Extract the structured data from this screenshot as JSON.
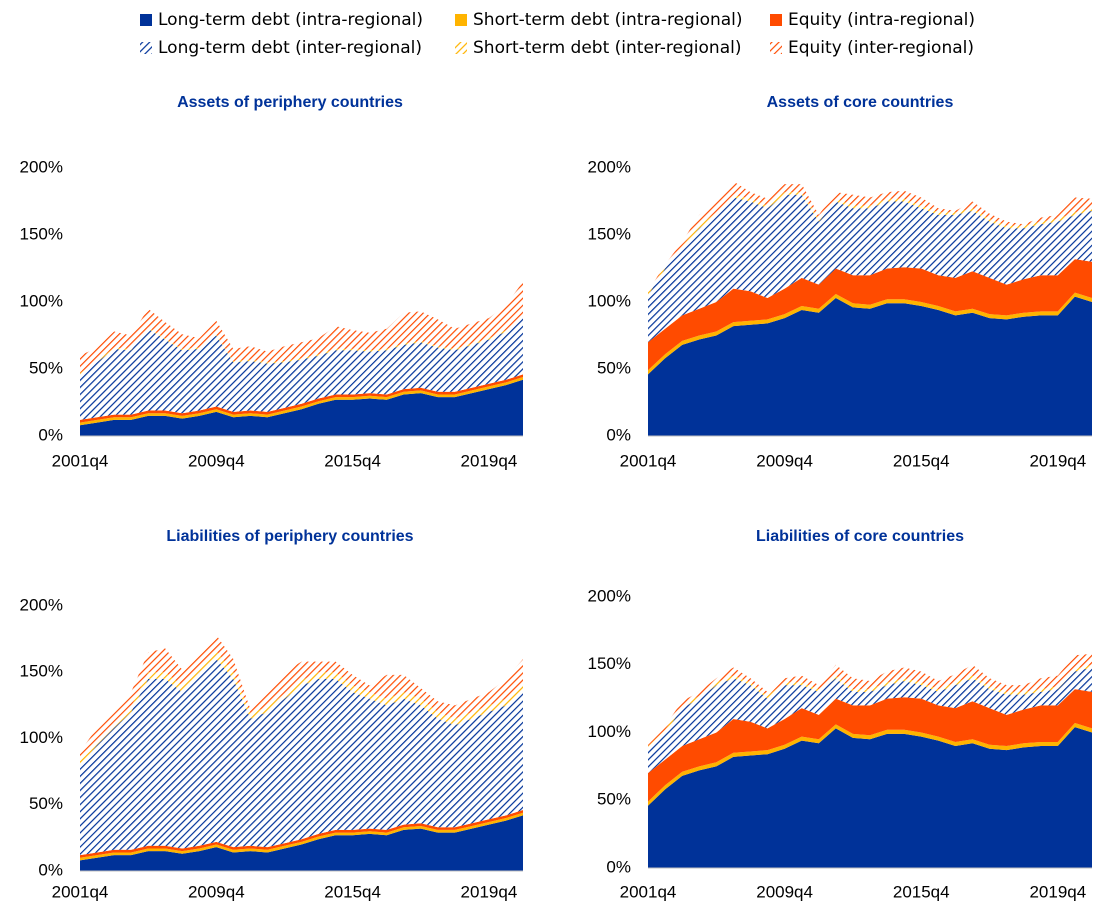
{
  "legend": [
    {
      "name": "Long-term debt (intra-regional)",
      "color": "#003299",
      "hatched": false
    },
    {
      "name": "Short-term debt (intra-regional)",
      "color": "#ffb400",
      "hatched": false
    },
    {
      "name": "Equity (intra-regional)",
      "color": "#ff4b00",
      "hatched": false
    },
    {
      "name": "Long-term debt (inter-regional)",
      "color": "#003299",
      "hatched": true
    },
    {
      "name": "Short-term debt (inter-regional)",
      "color": "#ffb400",
      "hatched": true
    },
    {
      "name": "Equity (inter-regional)",
      "color": "#ff4b00",
      "hatched": true
    }
  ],
  "chart_data": [
    {
      "type": "stacked-area",
      "title": "Assets of periphery countries",
      "categories": [
        "2001q4",
        null,
        null,
        null,
        null,
        null,
        null,
        null,
        "2009q4",
        null,
        null,
        null,
        null,
        null,
        null,
        null,
        "2015q4",
        null,
        null,
        null,
        null,
        null,
        null,
        null,
        "2019q4",
        null,
        null
      ],
      "ylim": [
        0,
        200
      ],
      "yticks": [
        {
          "value": 0,
          "label": "0%"
        },
        {
          "value": 50,
          "label": "50%"
        },
        {
          "value": 100,
          "label": "100%"
        },
        {
          "value": 150,
          "label": "150%"
        },
        {
          "value": 200,
          "label": "200%"
        }
      ],
      "series": [
        {
          "values": [
            8,
            10,
            12,
            12,
            15,
            15,
            13,
            15,
            18,
            14,
            15,
            14,
            17,
            20,
            24,
            27,
            27,
            28,
            27,
            31,
            32,
            29,
            29,
            32,
            35,
            38,
            42
          ]
        },
        {
          "values": [
            2,
            2,
            2,
            2,
            2,
            2,
            2,
            2,
            2,
            2,
            2,
            2,
            2,
            2,
            2,
            2,
            2,
            2,
            2,
            2,
            2,
            2,
            2,
            2,
            2,
            2,
            2
          ]
        },
        {
          "values": [
            2,
            2,
            2,
            2,
            2,
            2,
            2,
            2,
            2,
            2,
            2,
            2,
            2,
            2,
            2,
            2,
            2,
            2,
            2,
            2,
            2,
            2,
            2,
            2,
            2,
            2,
            2
          ]
        },
        {
          "values": [
            34,
            41,
            49,
            48,
            61,
            53,
            47,
            46,
            53,
            37,
            37,
            36,
            34,
            33,
            32,
            33,
            33,
            31,
            33,
            33,
            34,
            33,
            31,
            32,
            33,
            36,
            42
          ]
        },
        {
          "values": [
            1,
            1,
            1,
            1,
            1,
            1,
            1,
            1,
            1,
            1,
            1,
            1,
            1,
            1,
            1,
            1,
            1,
            1,
            1,
            1,
            1,
            1,
            1,
            1,
            1,
            1,
            1
          ]
        },
        {
          "values": [
            13,
            10,
            12,
            10,
            14,
            12,
            11,
            7,
            10,
            9,
            10,
            8,
            11,
            12,
            12,
            17,
            14,
            13,
            15,
            23,
            22,
            20,
            15,
            15,
            15,
            19,
            26
          ]
        }
      ]
    },
    {
      "type": "stacked-area",
      "title": "Assets of core countries",
      "categories": [
        "2001q4",
        null,
        null,
        null,
        null,
        null,
        null,
        null,
        "2009q4",
        null,
        null,
        null,
        null,
        null,
        null,
        null,
        "2015q4",
        null,
        null,
        null,
        null,
        null,
        null,
        null,
        "2019q4",
        null,
        null
      ],
      "ylim": [
        0,
        200
      ],
      "yticks": [
        {
          "value": 0,
          "label": "0%"
        },
        {
          "value": 50,
          "label": "50%"
        },
        {
          "value": 100,
          "label": "100%"
        },
        {
          "value": 150,
          "label": "150%"
        },
        {
          "value": 200,
          "label": "200%"
        }
      ],
      "series": [
        {
          "values": [
            46,
            58,
            68,
            72,
            75,
            82,
            83,
            84,
            88,
            94,
            92,
            103,
            96,
            95,
            99,
            99,
            97,
            94,
            90,
            92,
            88,
            87,
            89,
            90,
            90,
            104,
            100
          ]
        },
        {
          "values": [
            3,
            3,
            3,
            3,
            3,
            3,
            3,
            3,
            3,
            3,
            3,
            3,
            3,
            3,
            3,
            3,
            3,
            3,
            3,
            3,
            3,
            3,
            3,
            3,
            3,
            3,
            3
          ]
        },
        {
          "values": [
            21,
            19,
            19,
            20,
            22,
            25,
            22,
            16,
            19,
            21,
            18,
            19,
            21,
            22,
            23,
            24,
            25,
            23,
            25,
            28,
            27,
            23,
            25,
            27,
            27,
            25,
            27
          ]
        },
        {
          "values": [
            35,
            45,
            50,
            60,
            65,
            68,
            67,
            67,
            70,
            62,
            47,
            50,
            50,
            50,
            50,
            49,
            45,
            45,
            47,
            45,
            42,
            42,
            38,
            38,
            40,
            33,
            38
          ]
        },
        {
          "values": [
            2,
            2,
            2,
            2,
            2,
            2,
            2,
            2,
            2,
            2,
            2,
            2,
            2,
            2,
            2,
            2,
            2,
            2,
            2,
            2,
            2,
            2,
            2,
            2,
            2,
            2,
            2
          ]
        },
        {
          "values": [
            1,
            1,
            3,
            8,
            8,
            10,
            5,
            5,
            6,
            6,
            3,
            5,
            8,
            6,
            5,
            6,
            6,
            3,
            1,
            5,
            4,
            3,
            1,
            3,
            3,
            11,
            7
          ]
        }
      ]
    },
    {
      "type": "stacked-area",
      "title": "Liabilities of periphery countries",
      "categories": [
        "2001q4",
        null,
        null,
        null,
        null,
        null,
        null,
        null,
        "2009q4",
        null,
        null,
        null,
        null,
        null,
        null,
        null,
        "2015q4",
        null,
        null,
        null,
        null,
        null,
        null,
        null,
        "2019q4",
        null,
        null
      ],
      "ylim": [
        0,
        200
      ],
      "yticks": [
        {
          "value": 0,
          "label": "0%"
        },
        {
          "value": 50,
          "label": "50%"
        },
        {
          "value": 100,
          "label": "100%"
        },
        {
          "value": 150,
          "label": "150%"
        },
        {
          "value": 200,
          "label": "200%"
        }
      ],
      "series": [
        {
          "values": [
            8,
            10,
            12,
            12,
            15,
            15,
            13,
            15,
            18,
            14,
            15,
            14,
            17,
            20,
            24,
            27,
            27,
            28,
            27,
            31,
            32,
            29,
            29,
            32,
            35,
            38,
            42
          ]
        },
        {
          "values": [
            2,
            2,
            2,
            2,
            2,
            2,
            2,
            2,
            2,
            2,
            2,
            2,
            2,
            2,
            2,
            2,
            2,
            2,
            2,
            2,
            2,
            2,
            2,
            2,
            2,
            2,
            2
          ]
        },
        {
          "values": [
            2,
            2,
            2,
            2,
            2,
            2,
            2,
            2,
            2,
            2,
            2,
            2,
            2,
            2,
            2,
            2,
            2,
            2,
            2,
            2,
            2,
            2,
            2,
            2,
            2,
            2,
            2
          ]
        },
        {
          "values": [
            68,
            81,
            92,
            104,
            126,
            126,
            118,
            131,
            138,
            127,
            96,
            102,
            109,
            116,
            117,
            114,
            104,
            98,
            94,
            95,
            89,
            82,
            77,
            79,
            81,
            83,
            89
          ]
        },
        {
          "values": [
            3,
            3,
            4,
            4,
            5,
            5,
            5,
            5,
            6,
            5,
            4,
            4,
            4,
            4,
            5,
            5,
            5,
            5,
            5,
            5,
            5,
            5,
            5,
            5,
            5,
            5,
            6
          ]
        },
        {
          "values": [
            7,
            10,
            10,
            11,
            15,
            18,
            12,
            10,
            12,
            10,
            3,
            11,
            16,
            14,
            8,
            8,
            8,
            5,
            18,
            13,
            8,
            8,
            10,
            10,
            10,
            15,
            19
          ]
        }
      ]
    },
    {
      "type": "stacked-area",
      "title": "Liabilities of core countries",
      "categories": [
        "2001q4",
        null,
        null,
        null,
        null,
        null,
        null,
        null,
        "2009q4",
        null,
        null,
        null,
        null,
        null,
        null,
        null,
        "2015q4",
        null,
        null,
        null,
        null,
        null,
        null,
        null,
        "2019q4",
        null,
        null
      ],
      "ylim": [
        0,
        200
      ],
      "yticks": [
        {
          "value": 0,
          "label": "0%"
        },
        {
          "value": 50,
          "label": "50%"
        },
        {
          "value": 100,
          "label": "100%"
        },
        {
          "value": 150,
          "label": "150%"
        },
        {
          "value": 200,
          "label": "200%"
        }
      ],
      "series": [
        {
          "values": [
            46,
            58,
            68,
            72,
            75,
            82,
            83,
            84,
            88,
            94,
            92,
            103,
            96,
            95,
            99,
            99,
            97,
            94,
            90,
            92,
            88,
            87,
            89,
            90,
            90,
            104,
            100
          ]
        },
        {
          "values": [
            3,
            3,
            3,
            3,
            3,
            3,
            3,
            3,
            3,
            3,
            3,
            3,
            3,
            3,
            3,
            3,
            3,
            3,
            3,
            3,
            3,
            3,
            3,
            3,
            3,
            3,
            3
          ]
        },
        {
          "values": [
            21,
            19,
            19,
            20,
            22,
            25,
            22,
            16,
            19,
            21,
            18,
            19,
            21,
            22,
            23,
            24,
            25,
            23,
            25,
            28,
            27,
            23,
            25,
            27,
            27,
            25,
            27
          ]
        },
        {
          "values": [
            18,
            20,
            28,
            30,
            35,
            30,
            27,
            22,
            25,
            17,
            17,
            15,
            10,
            10,
            10,
            12,
            10,
            10,
            17,
            17,
            14,
            15,
            11,
            10,
            12,
            13,
            18
          ]
        },
        {
          "values": [
            2,
            2,
            2,
            2,
            2,
            2,
            2,
            2,
            2,
            2,
            2,
            2,
            2,
            2,
            2,
            2,
            2,
            2,
            2,
            2,
            2,
            2,
            2,
            2,
            2,
            2,
            2
          ]
        },
        {
          "values": [
            2,
            3,
            3,
            3,
            3,
            6,
            3,
            3,
            3,
            5,
            3,
            8,
            8,
            6,
            8,
            8,
            8,
            6,
            6,
            8,
            6,
            5,
            5,
            8,
            8,
            10,
            8
          ]
        }
      ]
    }
  ]
}
